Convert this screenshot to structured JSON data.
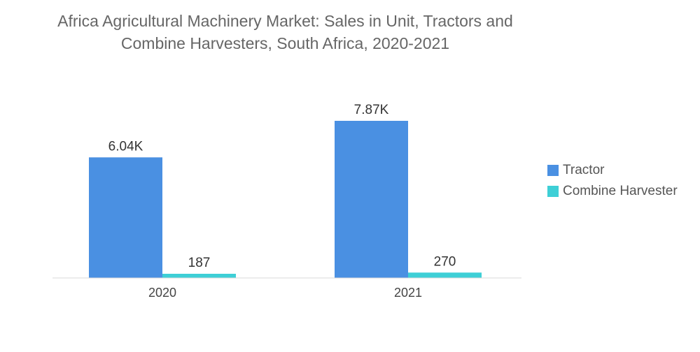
{
  "chart_data": {
    "type": "bar",
    "title_lines": [
      "Africa Agricultural Machinery Market: Sales in Unit, Tractors and",
      "Combine Harvesters, South Africa, 2020-2021"
    ],
    "categories": [
      "2020",
      "2021"
    ],
    "series": [
      {
        "name": "Tractor",
        "values": [
          6040,
          7870
        ],
        "labels": [
          "6.04K",
          "7.87K"
        ],
        "color": "#4a90e2"
      },
      {
        "name": "Combine Harvester",
        "values": [
          187,
          270
        ],
        "labels": [
          "187",
          "270"
        ],
        "color": "#3ecfd6"
      }
    ],
    "ylim": [
      0,
      7870
    ],
    "grid": false,
    "y_axis_visible": false,
    "legend_position": "right"
  }
}
